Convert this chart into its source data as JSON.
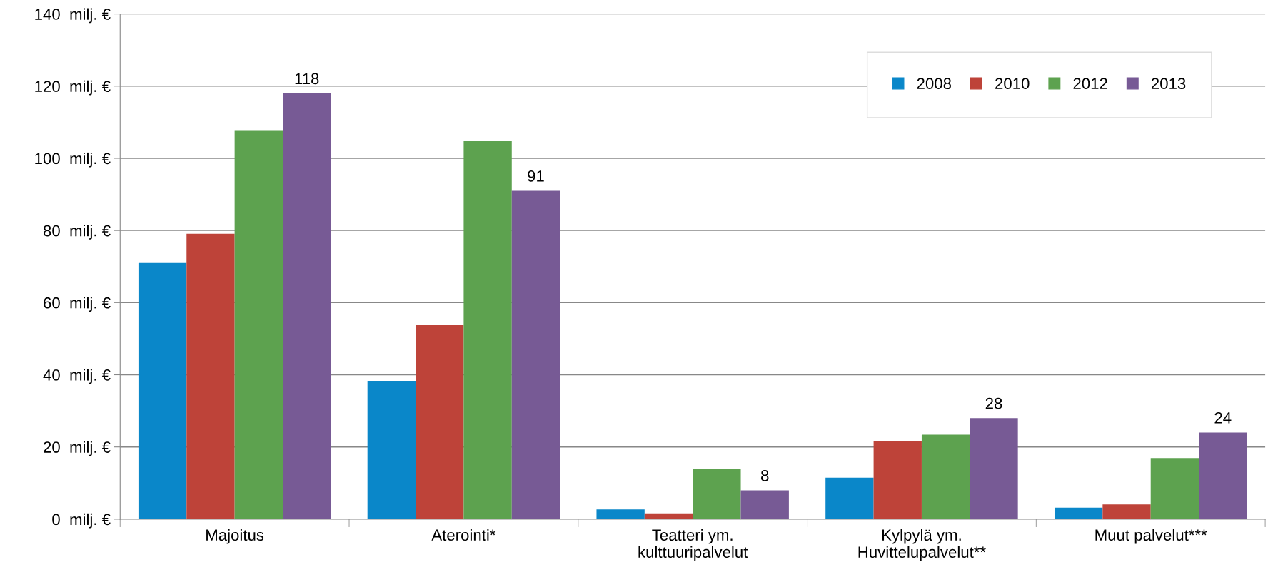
{
  "chart_data": {
    "type": "bar",
    "categories": [
      "Majoitus",
      "Aterointi*",
      "Teatteri ym.\nkulttuuripalvelut",
      "Kylpylä ym.\nHuvittelupalvelut**",
      "Muut palvelut***"
    ],
    "series": [
      {
        "name": "2008",
        "color": "#0a87c9",
        "values": [
          71,
          38.3,
          2.7,
          11.5,
          3.2
        ]
      },
      {
        "name": "2010",
        "color": "#be4339",
        "values": [
          79.1,
          53.9,
          1.6,
          21.6,
          4.1
        ]
      },
      {
        "name": "2012",
        "color": "#5da24f",
        "values": [
          107.8,
          104.8,
          13.8,
          23.4,
          16.9
        ]
      },
      {
        "name": "2013",
        "color": "#775a95",
        "values": [
          118,
          91,
          8,
          28,
          24
        ],
        "value_labels": [
          "118",
          "91",
          "8",
          "28",
          "24"
        ]
      }
    ],
    "ylim": [
      0,
      140
    ],
    "yticks": [
      {
        "value": 0,
        "label": "0  milj. €"
      },
      {
        "value": 20,
        "label": "20  milj. €"
      },
      {
        "value": 40,
        "label": "40  milj. €"
      },
      {
        "value": 60,
        "label": "60  milj. €"
      },
      {
        "value": 80,
        "label": "80  milj. €"
      },
      {
        "value": 100,
        "label": "100  milj. €"
      },
      {
        "value": 120,
        "label": "120  milj. €"
      },
      {
        "value": 140,
        "label": "140  milj. €"
      }
    ],
    "grid": "y",
    "legend": "top right"
  }
}
